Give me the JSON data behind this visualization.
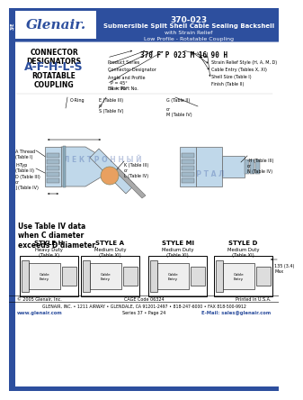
{
  "header_bg": "#2d4f9e",
  "header_text_color": "#ffffff",
  "part_number": "370-023",
  "title_line1": "Submersible Split Shell Cable Sealing Backshell",
  "title_line2": "with Strain Relief",
  "title_line3": "Low Profile - Rotatable Coupling",
  "logo_text": "Glenair.",
  "ce_mark": "3/E",
  "connector_designators_label": "CONNECTOR\nDESIGNATORS",
  "designators": "A-F-H-L-S",
  "coupling_label": "ROTATABLE\nCOUPLING",
  "part_breakdown_number": "370 F P 023 M 16 90 H",
  "part_labels_left": [
    "Product Series",
    "Connector Designator",
    "Angle and Profile\n  P = 45°\n  R = 90°",
    "Basic Part No."
  ],
  "part_labels_right": [
    "Strain Relief Style (H, A, M, D)",
    "Cable Entry (Tables X, XI)",
    "Shell Size (Table I)",
    "Finish (Table II)"
  ],
  "watermark_text1": "Э Л Е К Т Р О Н Н Ы Й",
  "watermark_text2": "П О Р Т А Л",
  "use_table_text": "Use Table IV data\nwhen C diameter\nexceeds D diameter.",
  "style_h_title": "STYLE H",
  "style_h_sub": "Heavy Duty\n(Table X)",
  "style_a_title": "STYLE A",
  "style_a_sub": "Medium Duty\n(Table XI)",
  "style_m_title": "STYLE MI",
  "style_m_sub": "Medium Duty\n(Table XI)",
  "style_d_title": "STYLE D",
  "style_d_sub": "Medium Duty\n(Table XI)",
  "style_d_note": "135 (3.4)\nMax",
  "footer_line1": "GLENAIR, INC. • 1211 AIRWAY • GLENDALE, CA 91201-2497 • 818-247-6000 • FAX 818-500-9912",
  "footer_line2_left": "www.glenair.com",
  "footer_line2_center": "Series 37 • Page 24",
  "footer_line2_right": "E-Mail: sales@glenair.com",
  "footer_cage": "CAGE Code 06324",
  "footer_printed": "Printed in U.S.A.",
  "footer_copyright": "© 2005 Glenair, Inc.",
  "bg_color": "#ffffff",
  "blue_color": "#2d4f9e",
  "light_blue": "#b8d0e8",
  "diagram_bg": "#c0d8ea",
  "orange_accent": "#e8a060"
}
